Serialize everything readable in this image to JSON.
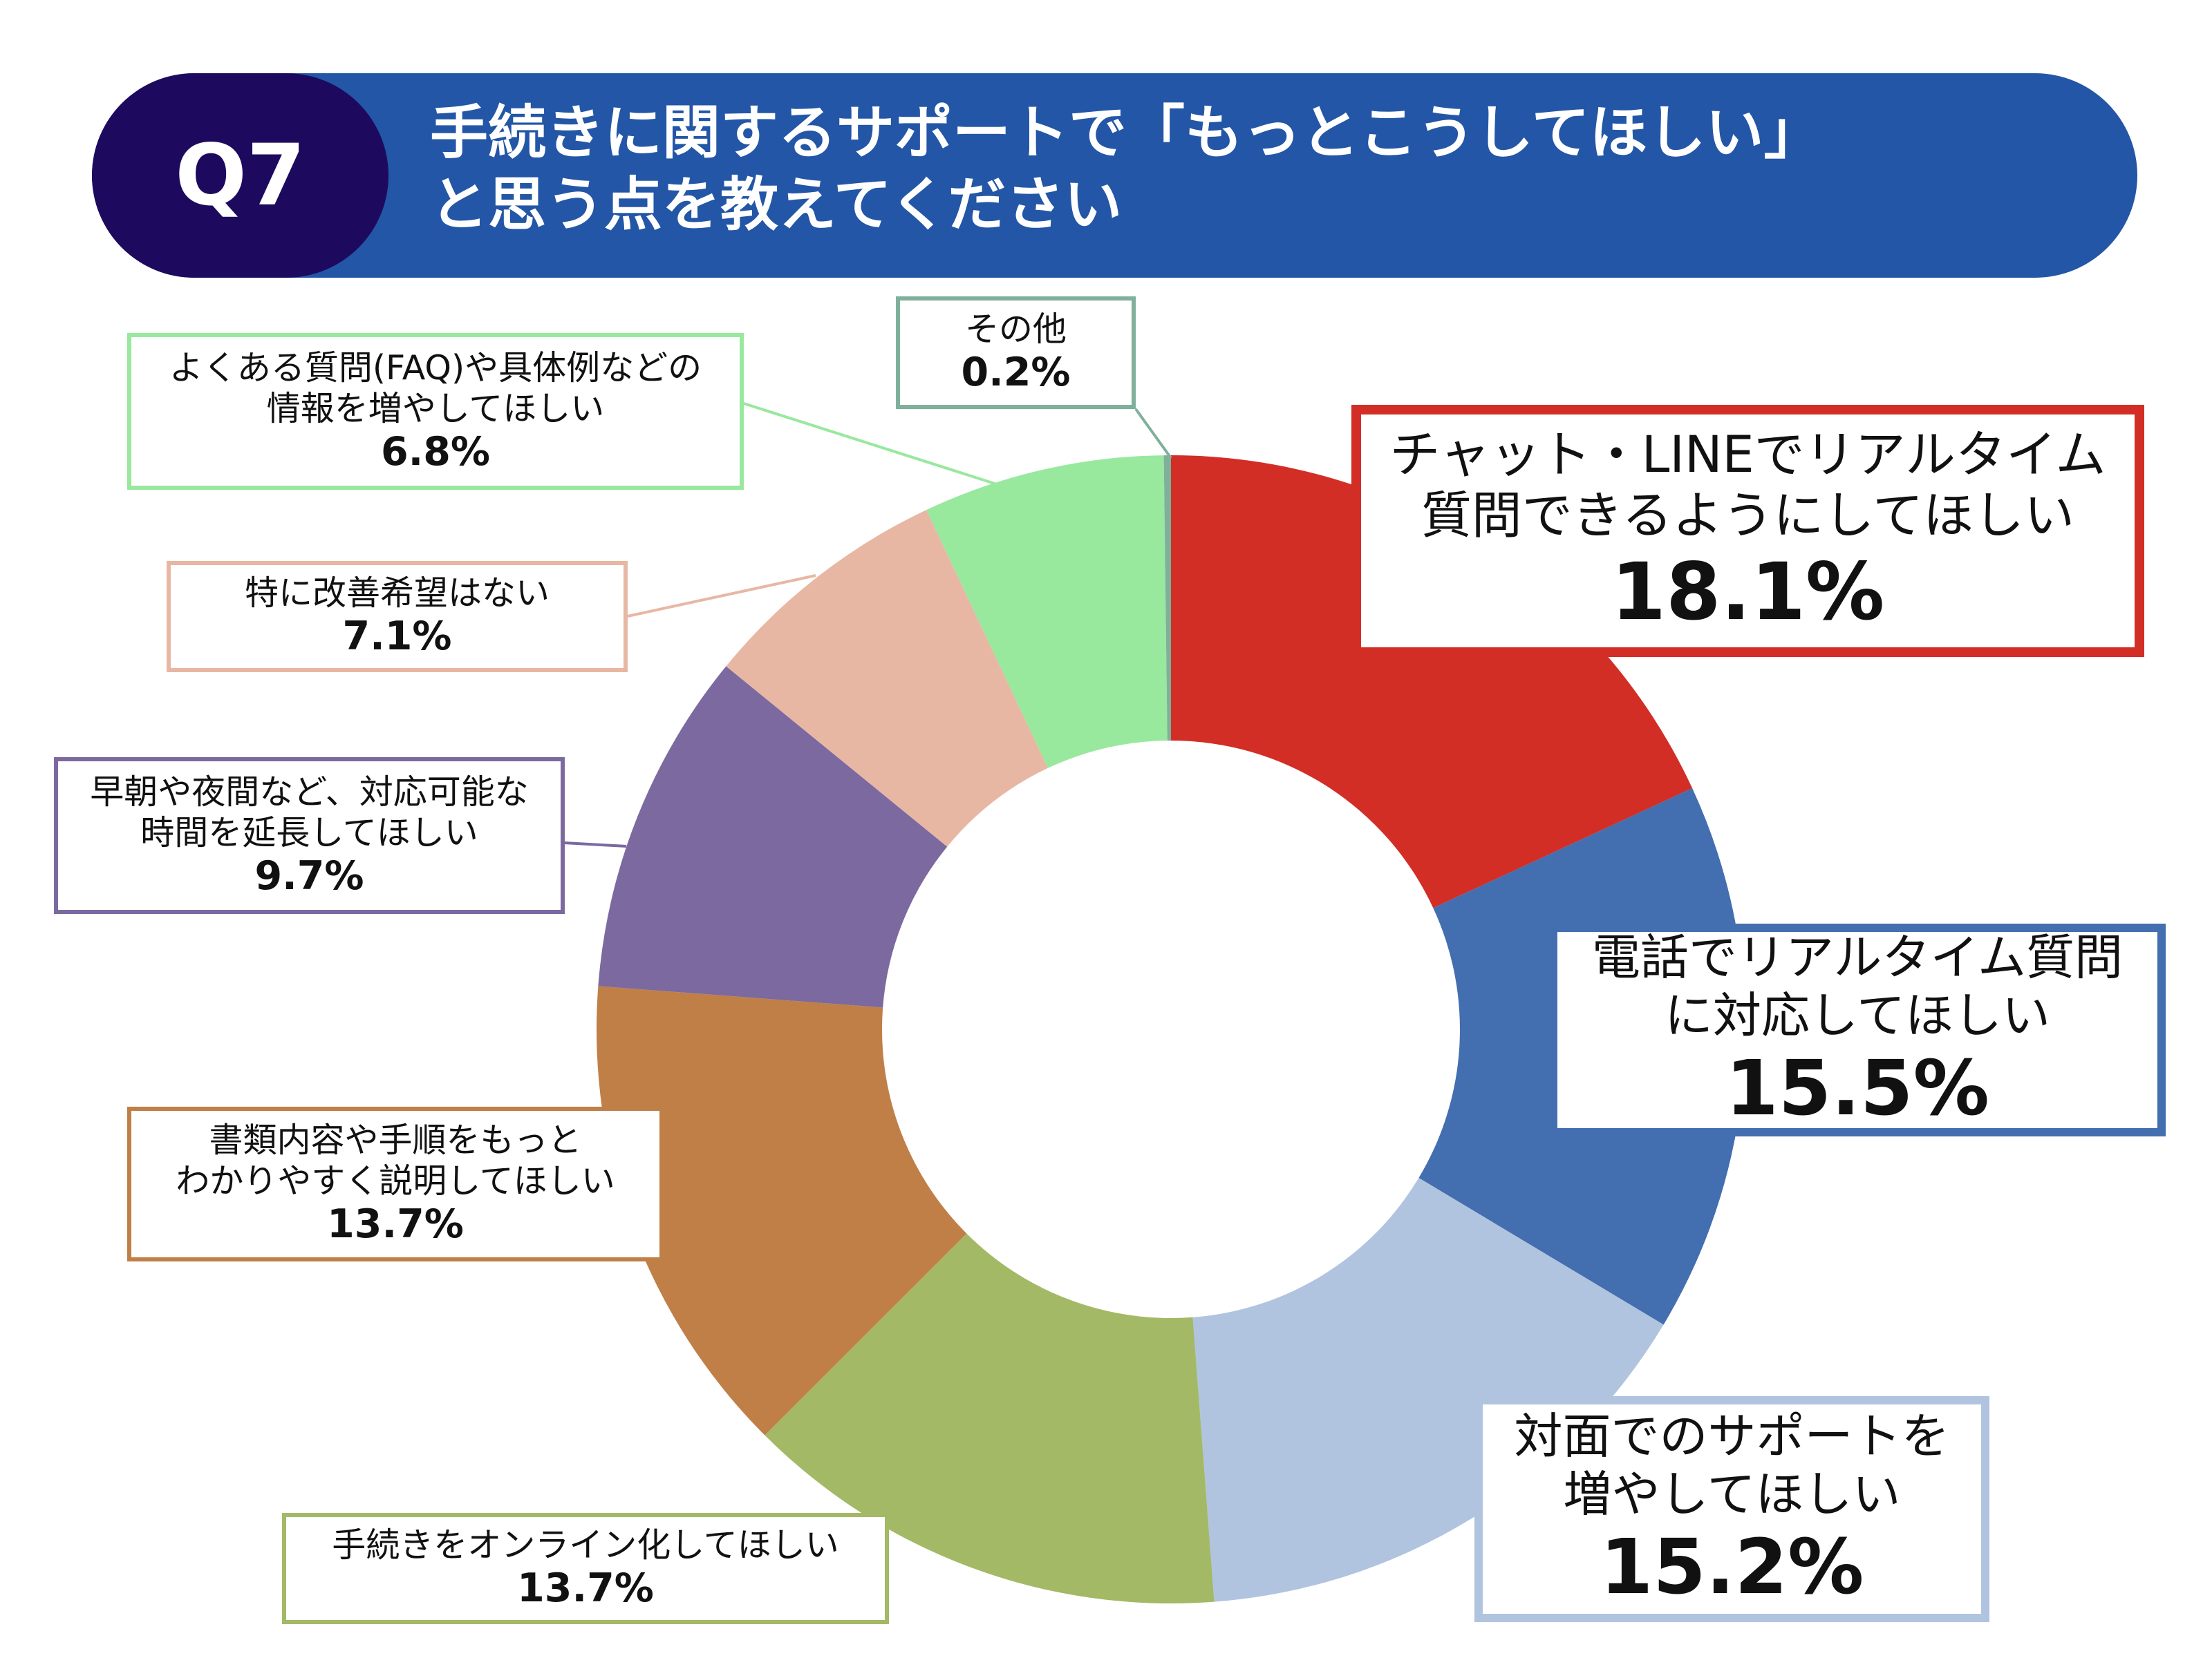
{
  "badge": "Q7",
  "title": "手続きに関するサポートで「もっとこうしてほしい」\nと思う点を教えてください",
  "chart_data": {
    "type": "pie",
    "categories": [
      "チャット・LINEでリアルタイム\n質問できるようにしてほしい",
      "電話でリアルタイム質問\nに対応してほしい",
      "対面でのサポートを\n増やしてほしい",
      "手続きをオンライン化してほしい",
      "書類内容や手順をもっと\nわかりやすく説明してほしい",
      "早朝や夜間など、対応可能な\n時間を延長してほしい",
      "特に改善希望はない",
      "よくある質問(FAQ)や具体例などの\n情報を増やしてほしい",
      "その他"
    ],
    "values": [
      18.1,
      15.5,
      15.2,
      13.7,
      13.7,
      9.7,
      7.1,
      6.8,
      0.2
    ],
    "value_labels": [
      "18.1%",
      "15.5%",
      "15.2%",
      "13.7%",
      "13.7%",
      "9.7%",
      "7.1%",
      "6.8%",
      "0.2%"
    ],
    "colors": [
      "#d22e26",
      "#436eb0",
      "#b0c4e0",
      "#a3b966",
      "#c07f47",
      "#7c69a0",
      "#e8b7a3",
      "#98e89e",
      "#7fb09c"
    ]
  }
}
